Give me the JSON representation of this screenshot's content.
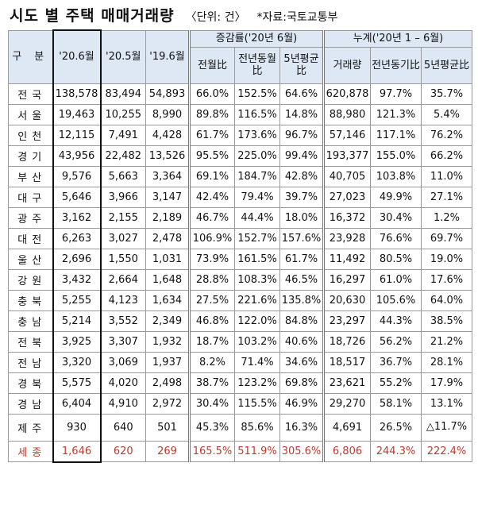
{
  "title": {
    "main": "시도 별 주택 매매거래량",
    "unit": "〈단위: 건〉",
    "source": "*자료:국토교통부"
  },
  "header": {
    "gubun": "구 분",
    "col_2006": "'20.6월",
    "col_2005": "'20.5월",
    "col_1906": "'19.6월",
    "group_change": "증감률('20년 6월)",
    "group_cum": "누계('20년 1 – 6월)",
    "mom": "전월比",
    "yoy": "전년동월比",
    "avg5": "5년평균比",
    "cum_vol": "거래량",
    "cum_yoy": "전년동기比",
    "cum_avg5": "5년평균比"
  },
  "rows": [
    {
      "region": "전국",
      "v2006": "138,578",
      "v2005": "83,494",
      "v1906": "54,893",
      "mom": "66.0%",
      "yoy": "152.5%",
      "avg5": "64.6%",
      "cum": "620,878",
      "cum_yoy": "97.7%",
      "cum_avg5": "35.7%"
    },
    {
      "region": "서울",
      "v2006": "19,463",
      "v2005": "10,255",
      "v1906": "8,990",
      "mom": "89.8%",
      "yoy": "116.5%",
      "avg5": "14.8%",
      "cum": "88,980",
      "cum_yoy": "121.3%",
      "cum_avg5": "5.4%"
    },
    {
      "region": "인천",
      "v2006": "12,115",
      "v2005": "7,491",
      "v1906": "4,428",
      "mom": "61.7%",
      "yoy": "173.6%",
      "avg5": "96.7%",
      "cum": "57,146",
      "cum_yoy": "117.1%",
      "cum_avg5": "76.2%"
    },
    {
      "region": "경기",
      "v2006": "43,956",
      "v2005": "22,482",
      "v1906": "13,526",
      "mom": "95.5%",
      "yoy": "225.0%",
      "avg5": "99.4%",
      "cum": "193,377",
      "cum_yoy": "155.0%",
      "cum_avg5": "66.2%"
    },
    {
      "region": "부산",
      "v2006": "9,576",
      "v2005": "5,663",
      "v1906": "3,364",
      "mom": "69.1%",
      "yoy": "184.7%",
      "avg5": "42.8%",
      "cum": "40,705",
      "cum_yoy": "103.8%",
      "cum_avg5": "11.0%"
    },
    {
      "region": "대구",
      "v2006": "5,646",
      "v2005": "3,966",
      "v1906": "3,147",
      "mom": "42.4%",
      "yoy": "79.4%",
      "avg5": "39.7%",
      "cum": "27,023",
      "cum_yoy": "49.9%",
      "cum_avg5": "27.1%"
    },
    {
      "region": "광주",
      "v2006": "3,162",
      "v2005": "2,155",
      "v1906": "2,189",
      "mom": "46.7%",
      "yoy": "44.4%",
      "avg5": "18.0%",
      "cum": "16,372",
      "cum_yoy": "30.4%",
      "cum_avg5": "1.2%"
    },
    {
      "region": "대전",
      "v2006": "6,263",
      "v2005": "3,027",
      "v1906": "2,478",
      "mom": "106.9%",
      "yoy": "152.7%",
      "avg5": "157.6%",
      "cum": "23,928",
      "cum_yoy": "76.6%",
      "cum_avg5": "69.7%"
    },
    {
      "region": "울산",
      "v2006": "2,696",
      "v2005": "1,550",
      "v1906": "1,031",
      "mom": "73.9%",
      "yoy": "161.5%",
      "avg5": "61.7%",
      "cum": "11,492",
      "cum_yoy": "80.5%",
      "cum_avg5": "19.0%"
    },
    {
      "region": "강원",
      "v2006": "3,432",
      "v2005": "2,664",
      "v1906": "1,648",
      "mom": "28.8%",
      "yoy": "108.3%",
      "avg5": "46.5%",
      "cum": "16,297",
      "cum_yoy": "61.0%",
      "cum_avg5": "17.6%"
    },
    {
      "region": "충북",
      "v2006": "5,255",
      "v2005": "4,123",
      "v1906": "1,634",
      "mom": "27.5%",
      "yoy": "221.6%",
      "avg5": "135.8%",
      "cum": "20,630",
      "cum_yoy": "105.6%",
      "cum_avg5": "64.0%"
    },
    {
      "region": "충남",
      "v2006": "5,214",
      "v2005": "3,552",
      "v1906": "2,349",
      "mom": "46.8%",
      "yoy": "122.0%",
      "avg5": "84.8%",
      "cum": "23,297",
      "cum_yoy": "44.3%",
      "cum_avg5": "38.5%"
    },
    {
      "region": "전북",
      "v2006": "3,925",
      "v2005": "3,307",
      "v1906": "1,932",
      "mom": "18.7%",
      "yoy": "103.2%",
      "avg5": "40.6%",
      "cum": "18,726",
      "cum_yoy": "56.2%",
      "cum_avg5": "21.2%"
    },
    {
      "region": "전남",
      "v2006": "3,320",
      "v2005": "3,069",
      "v1906": "1,937",
      "mom": "8.2%",
      "yoy": "71.4%",
      "avg5": "34.6%",
      "cum": "18,517",
      "cum_yoy": "36.7%",
      "cum_avg5": "28.1%"
    },
    {
      "region": "경북",
      "v2006": "5,575",
      "v2005": "4,020",
      "v1906": "2,498",
      "mom": "38.7%",
      "yoy": "123.2%",
      "avg5": "69.8%",
      "cum": "23,621",
      "cum_yoy": "55.2%",
      "cum_avg5": "17.9%"
    },
    {
      "region": "경남",
      "v2006": "6,404",
      "v2005": "4,910",
      "v1906": "2,972",
      "mom": "30.4%",
      "yoy": "115.5%",
      "avg5": "46.9%",
      "cum": "29,270",
      "cum_yoy": "58.1%",
      "cum_avg5": "13.1%"
    },
    {
      "region": "제주",
      "v2006": "930",
      "v2005": "640",
      "v1906": "501",
      "mom": "45.3%",
      "yoy": "85.6%",
      "avg5": "16.3%",
      "cum": "4,691",
      "cum_yoy": "26.5%",
      "cum_avg5": "△11.7%"
    },
    {
      "region": "세종",
      "v2006": "1,646",
      "v2005": "620",
      "v1906": "269",
      "mom": "165.5%",
      "yoy": "511.9%",
      "avg5": "305.6%",
      "cum": "6,806",
      "cum_yoy": "244.3%",
      "cum_avg5": "222.4%"
    }
  ]
}
